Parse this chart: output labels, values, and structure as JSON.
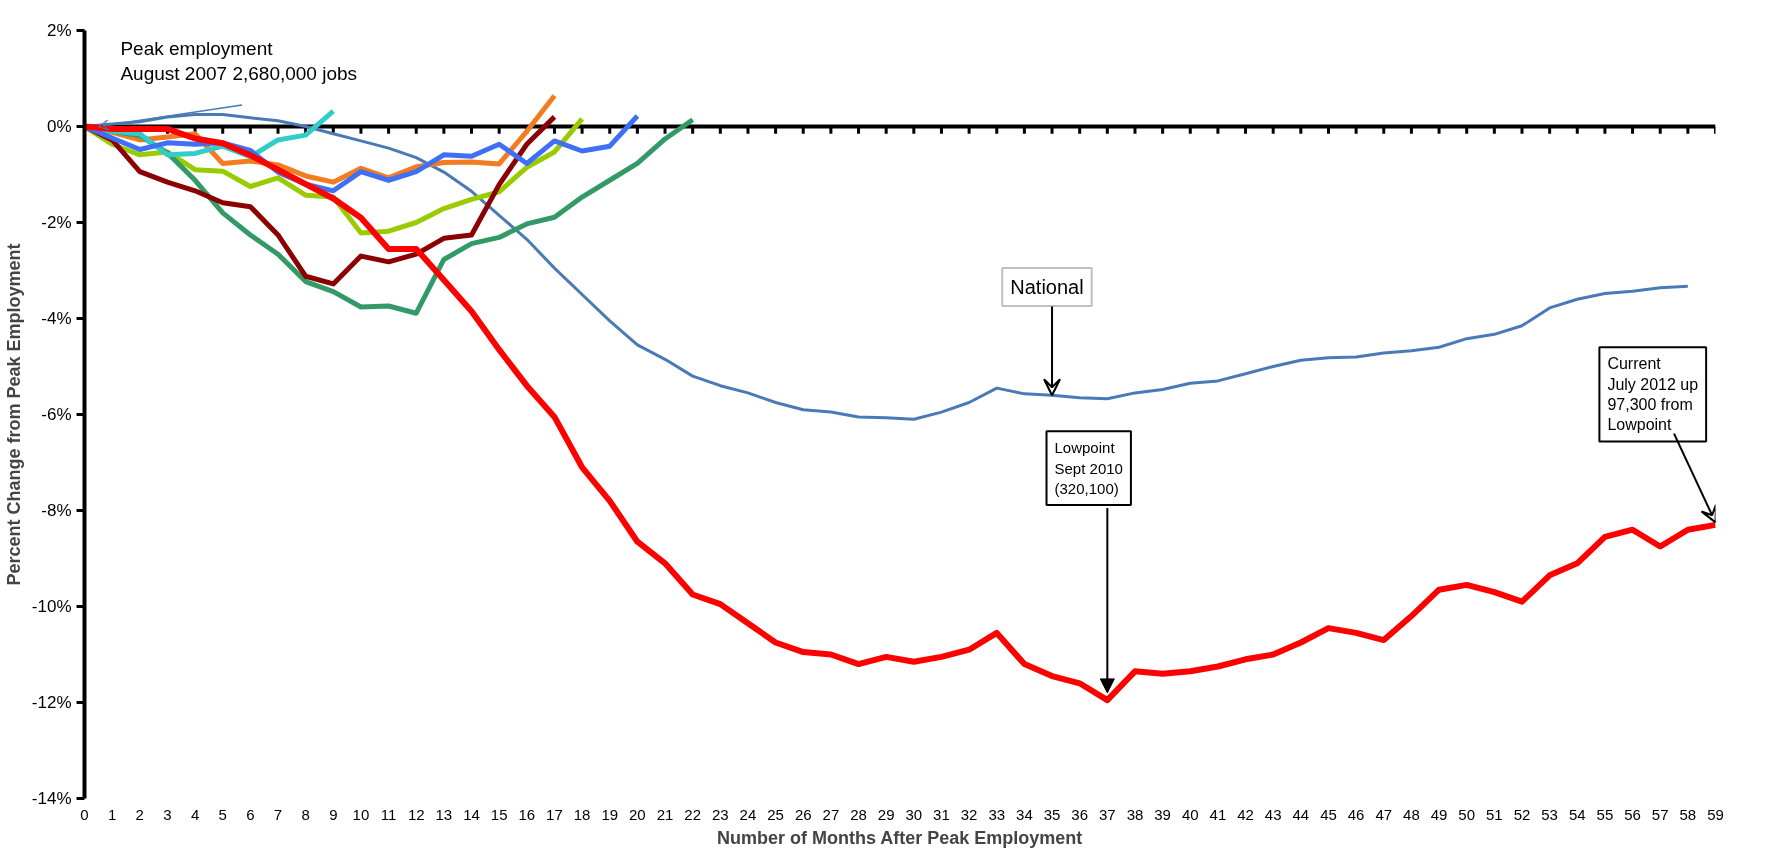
{
  "chart_data": {
    "type": "line",
    "xlabel": "Number of Months After Peak Employment",
    "ylabel": "Percent Change from Peak Employment",
    "x": [
      0,
      1,
      2,
      3,
      4,
      5,
      6,
      7,
      8,
      9,
      10,
      11,
      12,
      13,
      14,
      15,
      16,
      17,
      18,
      19,
      20,
      21,
      22,
      23,
      24,
      25,
      26,
      27,
      28,
      29,
      30,
      31,
      32,
      33,
      34,
      35,
      36,
      37,
      38,
      39,
      40,
      41,
      42,
      43,
      44,
      45,
      46,
      47,
      48,
      49,
      50,
      51,
      52,
      53,
      54,
      55,
      56,
      57,
      58,
      59
    ],
    "xlim": [
      0,
      59
    ],
    "xticks": [
      0,
      1,
      2,
      3,
      4,
      5,
      6,
      7,
      8,
      9,
      10,
      11,
      12,
      13,
      14,
      15,
      16,
      17,
      18,
      19,
      20,
      21,
      22,
      23,
      24,
      25,
      26,
      27,
      28,
      29,
      30,
      31,
      32,
      33,
      34,
      35,
      36,
      37,
      38,
      39,
      40,
      41,
      42,
      43,
      44,
      45,
      46,
      47,
      48,
      49,
      50,
      51,
      52,
      53,
      54,
      55,
      56,
      57,
      58,
      59
    ],
    "ylim": [
      -14,
      2
    ],
    "yticks": [
      {
        "value": -14,
        "label": "-14%"
      },
      {
        "value": -12,
        "label": "-12%"
      },
      {
        "value": -10,
        "label": "-10%"
      },
      {
        "value": -8,
        "label": "-8%"
      },
      {
        "value": -6,
        "label": "-6%"
      },
      {
        "value": -4,
        "label": "-4%"
      },
      {
        "value": -2,
        "label": "-2%"
      },
      {
        "value": 0,
        "label": "0%"
      },
      {
        "value": 2,
        "label": "2%"
      }
    ],
    "grid": false,
    "marker": "none",
    "line_style": "solid",
    "ref_lines": [
      {
        "axis": "y",
        "value": 0,
        "color": "#000000"
      }
    ],
    "series": [
      {
        "color": "#4a7ab5",
        "values": [
          0,
          0.05,
          0.1,
          0.2,
          0.25,
          0.25,
          0.18,
          0.12,
          0.0,
          -0.15,
          -0.3,
          -0.45,
          -0.65,
          -0.95,
          -1.35,
          -1.85,
          -2.35,
          -2.95,
          -3.5,
          -4.05,
          -4.55,
          -4.85,
          -5.2,
          -5.4,
          -5.55,
          -5.75,
          -5.9,
          -5.95,
          -6.05,
          -6.07,
          -6.1,
          -5.95,
          -5.75,
          -5.45,
          -5.57,
          -5.6,
          -5.65,
          -5.67,
          -5.55,
          -5.48,
          -5.35,
          -5.3,
          -5.15,
          -5.0,
          -4.87,
          -4.82,
          -4.8,
          -4.72,
          -4.67,
          -4.6,
          -4.42,
          -4.33,
          -4.15,
          -3.78,
          -3.6,
          -3.48,
          -3.43,
          -3.36,
          -3.33,
          null
        ]
      },
      {
        "color": "#f47c20",
        "x": [
          0,
          1,
          2,
          3,
          4,
          5,
          6,
          7,
          8,
          9,
          10,
          11,
          12,
          13,
          14,
          15,
          16,
          17
        ],
        "values": [
          0,
          -0.12,
          -0.28,
          -0.22,
          -0.15,
          -0.77,
          -0.72,
          -0.8,
          -1.03,
          -1.16,
          -0.87,
          -1.07,
          -0.84,
          -0.75,
          -0.74,
          -0.78,
          -0.1,
          0.64
        ]
      },
      {
        "color": "#99cc00",
        "x": [
          0,
          1,
          2,
          3,
          4,
          5,
          6,
          7,
          8,
          9,
          10,
          11,
          12,
          13,
          14,
          15,
          16,
          17,
          18
        ],
        "values": [
          0,
          -0.37,
          -0.59,
          -0.53,
          -0.9,
          -0.93,
          -1.25,
          -1.07,
          -1.43,
          -1.47,
          -2.22,
          -2.18,
          -2.0,
          -1.71,
          -1.52,
          -1.36,
          -0.85,
          -0.53,
          0.16
        ]
      },
      {
        "color": "#339966",
        "x": [
          0,
          1,
          2,
          3,
          4,
          5,
          6,
          7,
          8,
          9,
          10,
          11,
          12,
          13,
          14,
          15,
          16,
          17,
          18,
          19,
          20,
          21,
          22
        ],
        "values": [
          0,
          -0.1,
          -0.19,
          -0.55,
          -1.12,
          -1.8,
          -2.26,
          -2.66,
          -3.23,
          -3.44,
          -3.76,
          -3.74,
          -3.89,
          -2.77,
          -2.44,
          -2.31,
          -2.03,
          -1.89,
          -1.47,
          -1.12,
          -0.77,
          -0.26,
          0.14
        ]
      },
      {
        "color": "#8b0000",
        "x": [
          0,
          1,
          2,
          3,
          4,
          5,
          6,
          7,
          8,
          9,
          10,
          11,
          12,
          13,
          14,
          15,
          16,
          17
        ],
        "values": [
          0,
          -0.28,
          -0.94,
          -1.16,
          -1.34,
          -1.59,
          -1.67,
          -2.26,
          -3.12,
          -3.28,
          -2.7,
          -2.82,
          -2.66,
          -2.33,
          -2.26,
          -1.21,
          -0.37,
          0.2
        ]
      },
      {
        "color": "#33cccc",
        "x": [
          0,
          1,
          2,
          3,
          4,
          5,
          6,
          7,
          8,
          9
        ],
        "values": [
          0,
          -0.1,
          -0.15,
          -0.59,
          -0.56,
          -0.41,
          -0.63,
          -0.28,
          -0.18,
          0.32
        ]
      },
      {
        "color": "#3f6ff5",
        "x": [
          0,
          1,
          2,
          3,
          4,
          5,
          6,
          7,
          8,
          9,
          10,
          11,
          12,
          13,
          14,
          15,
          16,
          17,
          18,
          19,
          20
        ],
        "values": [
          0,
          -0.24,
          -0.48,
          -0.34,
          -0.37,
          -0.34,
          -0.5,
          -0.95,
          -1.2,
          -1.34,
          -0.94,
          -1.12,
          -0.94,
          -0.59,
          -0.62,
          -0.37,
          -0.77,
          -0.3,
          -0.51,
          -0.41,
          0.22
        ]
      },
      {
        "color": "#ff0000",
        "values": [
          0,
          -0.05,
          -0.05,
          -0.05,
          -0.25,
          -0.35,
          -0.6,
          -0.9,
          -1.2,
          -1.5,
          -1.9,
          -2.55,
          -2.55,
          -3.2,
          -3.85,
          -4.65,
          -5.4,
          -6.05,
          -7.1,
          -7.8,
          -8.65,
          -9.1,
          -9.75,
          -9.95,
          -10.35,
          -10.75,
          -10.95,
          -11.0,
          -11.2,
          -11.05,
          -11.15,
          -11.05,
          -10.9,
          -10.55,
          -11.2,
          -11.45,
          -11.6,
          -11.95,
          -11.35,
          -11.4,
          -11.35,
          -11.25,
          -11.1,
          -11.0,
          -10.75,
          -10.45,
          -10.55,
          -10.7,
          -10.2,
          -9.65,
          -9.55,
          -9.7,
          -9.9,
          -9.35,
          -9.1,
          -8.55,
          -8.4,
          -8.75,
          -8.4,
          -8.3
        ]
      }
    ],
    "annotations": [
      {
        "text": "Peak employment\nAugust 2007 2,680,000 jobs",
        "x": 0.5,
        "y": 0
      },
      {
        "text": "National",
        "x": 35,
        "y": -5.6
      },
      {
        "text": "Lowpoint\nSept 2010\n(320,100)",
        "x": 37,
        "y": -11.8
      },
      {
        "text": "Current\nJuly 2012 up\n97,300 from\nLowpoint",
        "x": 59,
        "y": -8.25
      }
    ]
  }
}
